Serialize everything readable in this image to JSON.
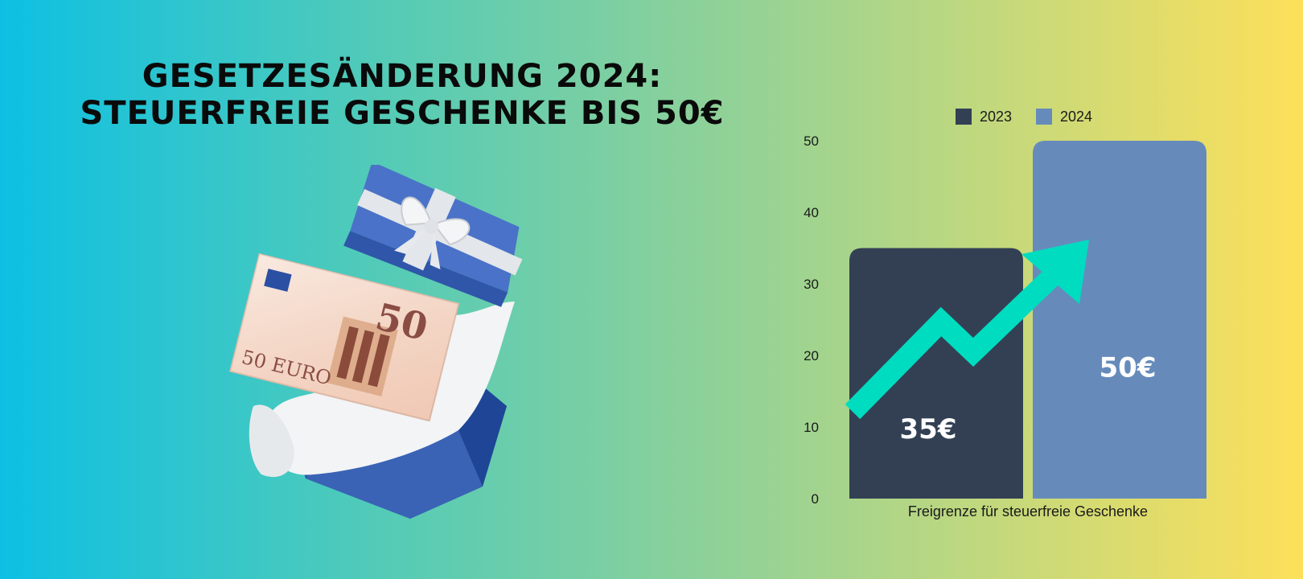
{
  "headline": {
    "line1": "Gesetzesänderung 2024:",
    "line2": "Steuerfreie Geschenke bis 50€"
  },
  "illustration": {
    "icon": "gift-box-with-50-euro-note-icon",
    "banknote_text": "50 EURO",
    "banknote_value": "50"
  },
  "chart_data": {
    "type": "bar",
    "categories": [
      "Freigrenze für steuerfreie Geschenke"
    ],
    "series": [
      {
        "name": "2023",
        "values": [
          35
        ],
        "label": "35€",
        "color": "#334054"
      },
      {
        "name": "2024",
        "values": [
          50
        ],
        "label": "50€",
        "color": "#668bbb"
      }
    ],
    "xlabel": "Freigrenze für steuerfreie Geschenke",
    "ylabel": "",
    "ylim": [
      0,
      50
    ],
    "yticks": [
      "0",
      "10",
      "20",
      "30",
      "40",
      "50"
    ],
    "legend_position": "top",
    "grid": false,
    "annotation": {
      "icon": "trend-up-arrow-icon",
      "color": "#00dcc0"
    }
  }
}
